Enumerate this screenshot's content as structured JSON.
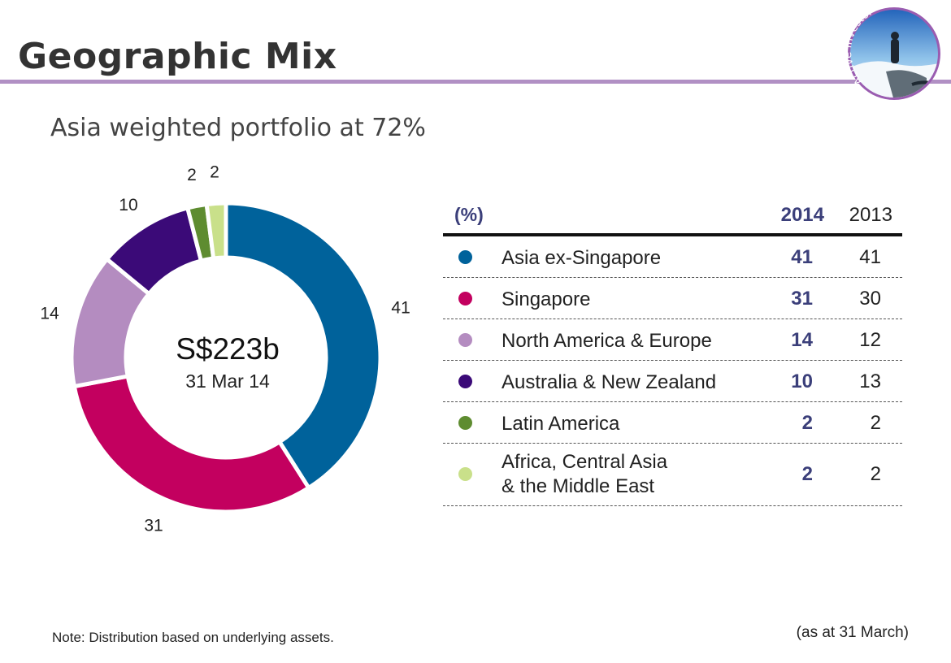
{
  "slide": {
    "title": "Geographic Mix",
    "subtitle": "Asia weighted portfolio at 72%",
    "badge_text": "Active Investor",
    "note": "Note: Distribution based on underlying assets.",
    "as_at": "(as at 31 March)"
  },
  "chart_data": {
    "type": "pie",
    "style": "donut",
    "center_value": "S$223b",
    "center_date": "31 Mar 14",
    "categories": [
      "Asia ex-Singapore",
      "Singapore",
      "North America & Europe",
      "Australia & New Zealand",
      "Latin America",
      "Africa, Central Asia & the Middle East"
    ],
    "values": [
      41,
      31,
      14,
      10,
      2,
      2
    ],
    "labels": [
      "41",
      "31",
      "14",
      "10",
      "2",
      "2"
    ],
    "colors": [
      "#00629b",
      "#c3005f",
      "#b48cc0",
      "#3b0a78",
      "#5e8c30",
      "#c9e08a"
    ]
  },
  "table": {
    "header_unit": "(%)",
    "header_2014": "2014",
    "header_2013": "2013",
    "rows": [
      {
        "label": "Asia ex-Singapore",
        "label2": "",
        "v2014": "41",
        "v2013": "41",
        "color": "#00629b"
      },
      {
        "label": "Singapore",
        "label2": "",
        "v2014": "31",
        "v2013": "30",
        "color": "#c3005f"
      },
      {
        "label": "North America & Europe",
        "label2": "",
        "v2014": "14",
        "v2013": "12",
        "color": "#b48cc0"
      },
      {
        "label": "Australia & New Zealand",
        "label2": "",
        "v2014": "10",
        "v2013": "13",
        "color": "#3b0a78"
      },
      {
        "label": "Latin America",
        "label2": "",
        "v2014": "2",
        "v2013": "2",
        "color": "#5e8c30"
      },
      {
        "label": "Africa, Central Asia",
        "label2": "& the Middle East",
        "v2014": "2",
        "v2013": "2",
        "color": "#c9e08a"
      }
    ]
  }
}
